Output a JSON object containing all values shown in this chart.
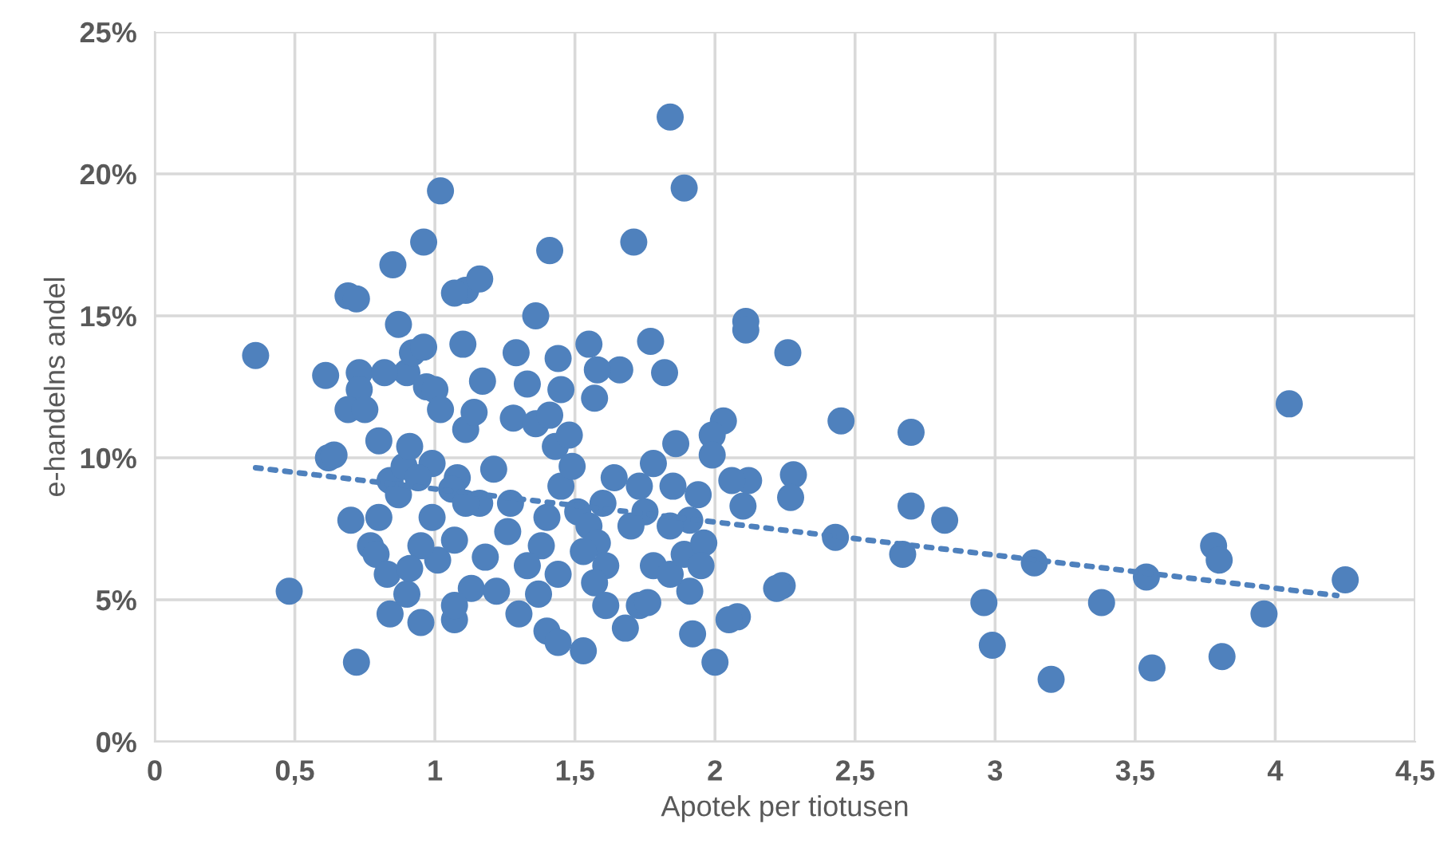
{
  "chart_data": {
    "type": "scatter",
    "xlabel": "Apotek per tiotusen",
    "ylabel": "e-handelns andel",
    "xlim": [
      0,
      4.5
    ],
    "ylim": [
      0,
      25
    ],
    "xticks": [
      0,
      {
        "value": 0.5,
        "label": "0,5"
      },
      1,
      {
        "value": 1.5,
        "label": "1,5"
      },
      2,
      {
        "value": 2.5,
        "label": "2,5"
      },
      3,
      {
        "value": 3.5,
        "label": "3,5"
      },
      4,
      {
        "value": 4.5,
        "label": "4,5"
      }
    ],
    "yticks": [
      {
        "value": 0,
        "label": "0%"
      },
      {
        "value": 5,
        "label": "5%"
      },
      {
        "value": 10,
        "label": "10%"
      },
      {
        "value": 15,
        "label": "15%"
      },
      {
        "value": 20,
        "label": "20%"
      },
      {
        "value": 25,
        "label": "25%"
      }
    ],
    "grid": true,
    "legend": false,
    "series": [
      {
        "color": "#4f81bd",
        "marker": "circle",
        "x": [
          0.36,
          0.48,
          0.72,
          0.69,
          0.72,
          0.85,
          0.96,
          1.02,
          1.11,
          1.07,
          1.41,
          1.84,
          1.89,
          1.71,
          1.77,
          1.82,
          1.36,
          1.55,
          1.66,
          2.11,
          2.11,
          2.26,
          2.45,
          2.7,
          2.7,
          2.82,
          2.43,
          2.67,
          2.96,
          2.99,
          3.14,
          3.2,
          3.38,
          3.54,
          3.56,
          3.78,
          3.8,
          3.81,
          3.96,
          4.05,
          4.25,
          2.28,
          2.27,
          2.1,
          2.12,
          2.06,
          2.03,
          1.99,
          1.99,
          2.24,
          2.22,
          2.08,
          2.05,
          2.0,
          1.92,
          1.91,
          1.53,
          1.86,
          1.85,
          0.61,
          0.73,
          0.73,
          0.69,
          0.75,
          0.8,
          0.62,
          0.64,
          0.7,
          0.8,
          0.77,
          0.79,
          0.83,
          0.84,
          0.9,
          0.95,
          0.84,
          0.87,
          0.89,
          0.91,
          0.9,
          0.92,
          0.96,
          0.87,
          0.82,
          0.97,
          1.0,
          1.02,
          0.99,
          0.94,
          0.99,
          1.01,
          1.07,
          1.08,
          1.11,
          1.14,
          1.17,
          1.1,
          1.16,
          1.29,
          1.33,
          1.28,
          1.36,
          1.21,
          1.16,
          1.26,
          1.18,
          1.13,
          1.07,
          1.07,
          1.22,
          1.3,
          1.37,
          1.4,
          1.44,
          1.38,
          1.45,
          1.43,
          1.41,
          1.45,
          1.44,
          1.48,
          1.49,
          1.51,
          1.55,
          1.58,
          1.61,
          1.57,
          1.61,
          1.68,
          1.73,
          1.76,
          1.78,
          1.84,
          1.89,
          1.96,
          1.91,
          1.84,
          1.75,
          1.7,
          1.64,
          1.6,
          1.73,
          1.78,
          1.53,
          1.33,
          1.27,
          1.4,
          1.44,
          1.57,
          1.58,
          0.95,
          0.91,
          1.06,
          1.11,
          1.95,
          1.94
        ],
        "values": [
          13.6,
          5.3,
          2.8,
          15.7,
          15.6,
          16.8,
          17.6,
          19.4,
          15.9,
          15.8,
          17.3,
          22.0,
          19.5,
          17.6,
          14.1,
          13.0,
          15.0,
          14.0,
          13.1,
          14.8,
          14.5,
          13.7,
          11.3,
          10.9,
          8.3,
          7.8,
          7.2,
          6.6,
          4.9,
          3.4,
          6.3,
          2.2,
          4.9,
          5.8,
          2.6,
          6.9,
          6.4,
          3.0,
          4.5,
          11.9,
          5.7,
          9.4,
          8.6,
          8.3,
          9.2,
          9.2,
          11.3,
          10.8,
          10.1,
          5.5,
          5.4,
          4.4,
          4.3,
          2.8,
          3.8,
          5.3,
          3.2,
          10.5,
          9.0,
          12.9,
          13.0,
          12.4,
          11.7,
          11.7,
          10.6,
          10.0,
          10.1,
          7.8,
          7.9,
          6.9,
          6.6,
          5.9,
          4.5,
          5.2,
          4.2,
          9.2,
          8.7,
          9.7,
          10.4,
          13.0,
          13.7,
          13.9,
          14.7,
          13.0,
          12.5,
          12.4,
          11.7,
          9.8,
          9.3,
          7.9,
          6.4,
          7.1,
          9.3,
          11.0,
          11.6,
          12.7,
          14.0,
          16.3,
          13.7,
          12.6,
          11.4,
          11.2,
          9.6,
          8.4,
          7.4,
          6.5,
          5.4,
          4.3,
          4.8,
          5.3,
          4.5,
          5.2,
          3.9,
          3.5,
          6.9,
          9.0,
          10.4,
          11.5,
          12.4,
          13.5,
          10.8,
          9.7,
          8.1,
          7.6,
          7.0,
          6.2,
          5.6,
          4.8,
          4.0,
          4.8,
          4.9,
          6.2,
          5.9,
          6.6,
          7.0,
          7.8,
          7.6,
          8.1,
          7.6,
          9.3,
          8.4,
          9.0,
          9.8,
          6.7,
          6.2,
          8.4,
          7.9,
          5.9,
          12.1,
          13.1,
          6.9,
          6.1,
          8.9,
          8.4,
          6.2,
          8.7
        ]
      },
      {
        "type": "line",
        "color": "#4f81bd",
        "marker": "none",
        "line_style": "dotted",
        "x": [
          0.36,
          4.22
        ],
        "values": [
          9.65,
          5.15
        ]
      }
    ]
  }
}
